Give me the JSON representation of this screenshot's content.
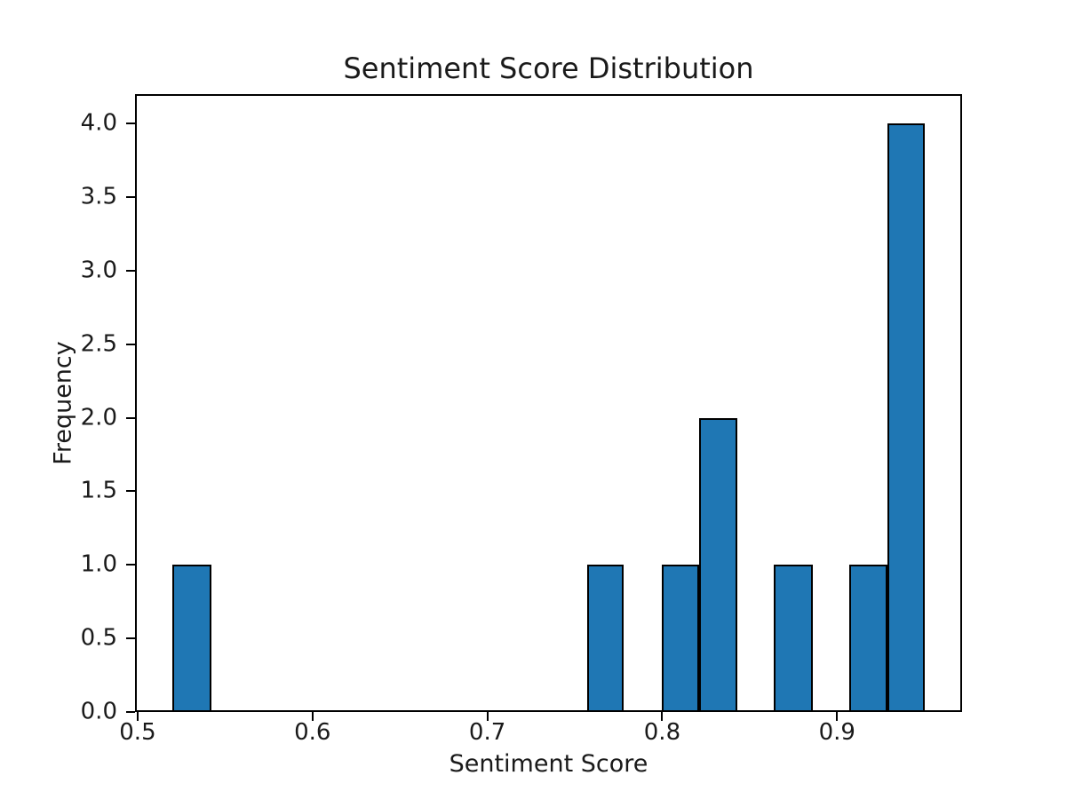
{
  "chart_data": {
    "type": "histogram",
    "title": "Sentiment Score Distribution",
    "xlabel": "Sentiment Score",
    "ylabel": "Frequency",
    "x_ticks": [
      0.5,
      0.6,
      0.7,
      0.8,
      0.9
    ],
    "x_tick_labels": [
      "0.5",
      "0.6",
      "0.7",
      "0.8",
      "0.9"
    ],
    "y_ticks": [
      0,
      0.5,
      1,
      1.5,
      2,
      2.5,
      3,
      3.5,
      4
    ],
    "y_tick_labels": [
      "0.0",
      "0.5",
      "1.0",
      "1.5",
      "2.0",
      "2.5",
      "3.0",
      "3.5",
      "4.0"
    ],
    "xlim": [
      0.4985,
      0.9715
    ],
    "ylim": [
      0,
      4.2
    ],
    "grid": false,
    "legend": false,
    "background_color": "#ffffff",
    "bar_color": "#1f77b4",
    "bar_edge_color": "#000000",
    "bins": [
      {
        "x0": 0.52,
        "x1": 0.542,
        "count": 1
      },
      {
        "x0": 0.757,
        "x1": 0.778,
        "count": 1
      },
      {
        "x0": 0.8,
        "x1": 0.821,
        "count": 1
      },
      {
        "x0": 0.821,
        "x1": 0.843,
        "count": 2
      },
      {
        "x0": 0.864,
        "x1": 0.886,
        "count": 1
      },
      {
        "x0": 0.907,
        "x1": 0.929,
        "count": 1
      },
      {
        "x0": 0.929,
        "x1": 0.95,
        "count": 4
      }
    ]
  }
}
